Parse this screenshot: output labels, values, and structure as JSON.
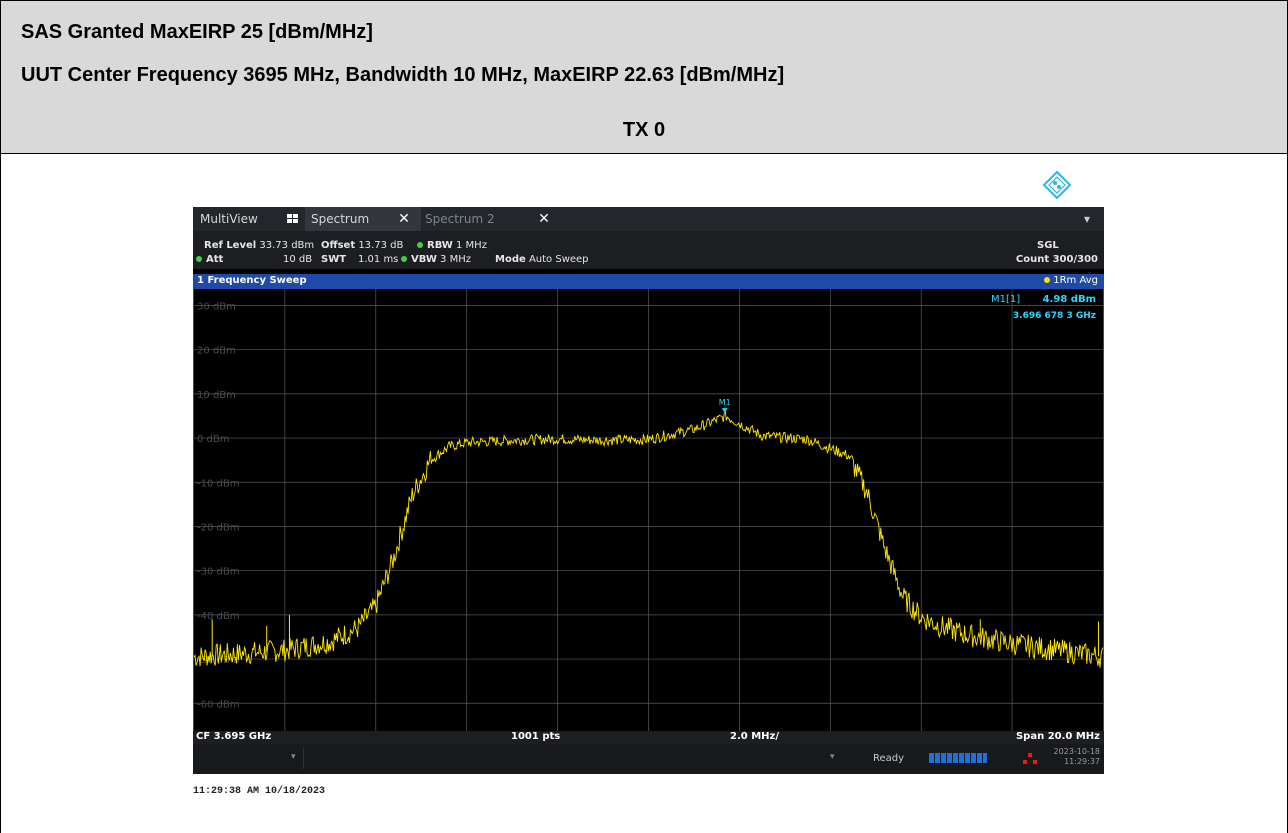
{
  "header": {
    "line1": "SAS Granted MaxEIRP 25 [dBm/MHz]",
    "line2": "UUT Center Frequency 3695 MHz, Bandwidth 10 MHz, MaxEIRP 22.63 [dBm/MHz]",
    "tx_label": "TX 0"
  },
  "instrument": {
    "tabs": {
      "multiview": "MultiView",
      "spectrum": "Spectrum",
      "spectrum2": "Spectrum 2",
      "close": "✕",
      "dropdown": "▾"
    },
    "settings": {
      "ref_level_label": "Ref Level",
      "ref_level_value": "33.73 dBm",
      "offset_label": "Offset",
      "offset_value": "13.73 dB",
      "rbw_label": "RBW",
      "rbw_value": "1 MHz",
      "att_label": "Att",
      "att_value": "10 dB",
      "swt_label": "SWT",
      "swt_value": "1.01 ms",
      "vbw_label": "VBW",
      "vbw_value": "3 MHz",
      "mode_label": "Mode",
      "mode_value": "Auto Sweep",
      "sgl": "SGL",
      "count": "Count 300/300"
    },
    "diagram": {
      "title": "1 Frequency Sweep",
      "trace_label": "1Rm Avg",
      "marker_name": "M1[1]",
      "marker_level": "4.98 dBm",
      "marker_freq": "3.696 678 3 GHz",
      "marker_tag": "M1"
    },
    "footer": {
      "cf": "CF 3.695 GHz",
      "pts": "1001 pts",
      "per_div": "2.0 MHz/",
      "span": "Span 20.0 MHz"
    },
    "status": {
      "ready": "Ready",
      "date": "2023-10-18",
      "time": "11:29:37",
      "progress": 1.0
    }
  },
  "timestamp": "11:29:38 AM  10/18/2023",
  "colors": {
    "trace": "#ffe800",
    "marker": "#29d6ff",
    "grid": "#5a5a5a",
    "diagram_bar": "#1f4aa8"
  },
  "chart_data": {
    "type": "line",
    "title": "1 Frequency Sweep",
    "xlabel": "",
    "ylabel": "",
    "x_unit": "MHz",
    "xlim": [
      3685,
      3705
    ],
    "ylim": [
      -66.27,
      33.73
    ],
    "y_ticks": [
      {
        "value": 30,
        "label": "30 dBm"
      },
      {
        "value": 20,
        "label": "20 dBm"
      },
      {
        "value": 10,
        "label": "10 dBm"
      },
      {
        "value": 0,
        "label": "0 dBm"
      },
      {
        "value": -10,
        "label": "-10 dBm"
      },
      {
        "value": -20,
        "label": "-20 dBm"
      },
      {
        "value": -30,
        "label": "-30 dBm"
      },
      {
        "value": -40,
        "label": "-40 dBm"
      },
      {
        "value": -50,
        "label": "-50 dBm"
      },
      {
        "value": -60,
        "label": "-60 dBm"
      }
    ],
    "grid": true,
    "series": [
      {
        "name": "1Rm Avg",
        "x": [
          3685.0,
          3685.6,
          3686.0,
          3687.0,
          3688.0,
          3688.6,
          3689.0,
          3689.4,
          3689.8,
          3690.2,
          3690.6,
          3691.0,
          3691.5,
          3692.0,
          3693.0,
          3694.0,
          3695.0,
          3696.0,
          3696.7,
          3697.5,
          3698.5,
          3699.4,
          3699.8,
          3700.2,
          3700.6,
          3701.0,
          3701.4,
          3702.0,
          3703.0,
          3704.0,
          3705.0
        ],
        "y": [
          -49.5,
          -49.0,
          -48.8,
          -48.0,
          -46.0,
          -43.0,
          -38.0,
          -27.0,
          -13.0,
          -5.0,
          -2.0,
          -1.0,
          -0.8,
          -0.5,
          -0.2,
          -0.5,
          -0.3,
          2.0,
          4.98,
          0.5,
          -0.3,
          -4.0,
          -12.0,
          -25.0,
          -36.0,
          -40.5,
          -42.5,
          -44.5,
          -46.5,
          -48.0,
          -49.5
        ]
      }
    ],
    "spikes": [
      {
        "x": 3685.4,
        "y": -41.0
      },
      {
        "x": 3686.6,
        "y": -42.5
      },
      {
        "x": 3687.1,
        "y": -40.0
      },
      {
        "x": 3702.3,
        "y": -41.0
      },
      {
        "x": 3704.9,
        "y": -41.5
      }
    ],
    "marker": {
      "x": 3696.6783,
      "y": 4.98
    }
  }
}
